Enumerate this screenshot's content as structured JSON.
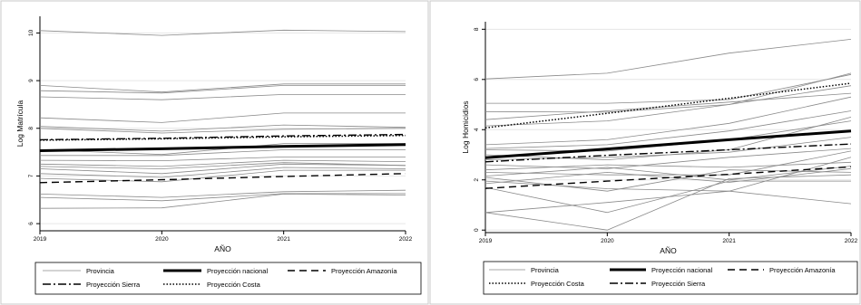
{
  "chart_data": [
    {
      "type": "line",
      "xlabel": "AÑO",
      "ylabel": "Log Matrícula",
      "x": [
        2019,
        2020,
        2021,
        2022
      ],
      "xticks": [
        "2019",
        "2020",
        "2021",
        "2022"
      ],
      "ylim": [
        5.85,
        10.35
      ],
      "yticks": [
        6,
        7,
        8,
        9,
        10
      ],
      "grid": true,
      "legend_position": "bottom",
      "legend": [
        "Provincia",
        "Proyección nacional",
        "Proyección Amazonía",
        "Proyección Sierra",
        "Proyección Costa"
      ],
      "series": [
        {
          "name": "Provincia",
          "style": "provincia",
          "values": [
            [
              10.05,
              9.95,
              10.06,
              10.03
            ],
            [
              8.9,
              8.76,
              8.93,
              8.93
            ],
            [
              8.79,
              8.74,
              8.9,
              8.9
            ],
            [
              8.66,
              8.6,
              8.71,
              8.71
            ],
            [
              8.22,
              8.12,
              8.32,
              8.32
            ],
            [
              8.04,
              7.94,
              8.07,
              8.02
            ],
            [
              8.0,
              7.9,
              7.98,
              8.0
            ],
            [
              7.55,
              7.45,
              7.68,
              7.68
            ],
            [
              7.43,
              7.43,
              7.55,
              7.55
            ],
            [
              7.33,
              7.32,
              7.4,
              7.4
            ],
            [
              7.25,
              7.2,
              7.33,
              7.3
            ],
            [
              7.2,
              7.15,
              7.28,
              7.22
            ],
            [
              7.15,
              7.05,
              7.25,
              7.22
            ],
            [
              7.05,
              6.97,
              7.18,
              7.15
            ],
            [
              6.95,
              6.88,
              7.12,
              7.12
            ],
            [
              6.62,
              6.55,
              6.67,
              6.7
            ],
            [
              6.55,
              6.48,
              6.63,
              6.63
            ],
            [
              6.32,
              6.33,
              6.62,
              6.6
            ]
          ]
        },
        {
          "name": "Proyección nacional",
          "style": "nacional",
          "values": [
            7.53,
            7.57,
            7.62,
            7.66
          ]
        },
        {
          "name": "Proyección Amazonía",
          "style": "amazonia",
          "values": [
            6.86,
            6.92,
            6.99,
            7.05
          ]
        },
        {
          "name": "Proyección Sierra",
          "style": "sierra",
          "values": [
            7.76,
            7.79,
            7.84,
            7.87
          ]
        },
        {
          "name": "Proyección Costa",
          "style": "costa",
          "values": [
            7.75,
            7.78,
            7.82,
            7.85
          ]
        }
      ]
    },
    {
      "type": "line",
      "xlabel": "AÑO",
      "ylabel": "Log Homicidios",
      "x": [
        2019,
        2020,
        2021,
        2022
      ],
      "xticks": [
        "2019",
        "2020",
        "2021",
        "2022"
      ],
      "ylim": [
        -0.1,
        8.3
      ],
      "yticks": [
        0,
        2,
        4,
        6,
        8
      ],
      "grid": true,
      "legend_position": "bottom",
      "legend": [
        "Provincia",
        "Proyección nacional",
        "Proyección Amazonía",
        "Proyección Costa",
        "Proyección Sierra"
      ],
      "series": [
        {
          "name": "Provincia",
          "style": "provincia",
          "values": [
            [
              6.02,
              6.25,
              7.05,
              7.6
            ],
            [
              5.05,
              5.05,
              5.2,
              6.2
            ],
            [
              4.72,
              4.7,
              5.0,
              6.25
            ],
            [
              4.4,
              4.75,
              5.1,
              5.45
            ],
            [
              4.15,
              4.35,
              5.0,
              5.75
            ],
            [
              3.4,
              3.6,
              4.25,
              5.3
            ],
            [
              3.25,
              3.4,
              3.95,
              4.75
            ],
            [
              3.2,
              3.15,
              3.6,
              4.35
            ],
            [
              3.0,
              2.8,
              3.2,
              4.5
            ],
            [
              2.8,
              2.9,
              3.1,
              3.7
            ],
            [
              2.6,
              2.45,
              2.9,
              3.25
            ],
            [
              2.4,
              2.6,
              2.5,
              2.7
            ],
            [
              2.3,
              2.2,
              2.2,
              3.15
            ],
            [
              2.15,
              2.5,
              2.0,
              2.55
            ],
            [
              2.1,
              1.55,
              2.4,
              2.3
            ],
            [
              1.95,
              1.65,
              1.55,
              1.05
            ],
            [
              1.85,
              2.3,
              1.9,
              2.45
            ],
            [
              0.7,
              1.1,
              1.55,
              2.9
            ],
            [
              0.7,
              0.0,
              2.05,
              2.2
            ],
            [
              1.7,
              0.7,
              1.95,
              1.95
            ]
          ]
        },
        {
          "name": "Proyección nacional",
          "style": "nacional",
          "values": [
            2.88,
            3.23,
            3.6,
            3.95
          ]
        },
        {
          "name": "Proyección Amazonía",
          "style": "amazonia",
          "values": [
            1.66,
            1.95,
            2.22,
            2.52
          ]
        },
        {
          "name": "Proyección Costa",
          "style": "costa",
          "values": [
            4.07,
            4.65,
            5.25,
            5.85
          ]
        },
        {
          "name": "Proyección Sierra",
          "style": "sierra",
          "values": [
            2.72,
            2.98,
            3.2,
            3.43
          ]
        }
      ]
    }
  ]
}
